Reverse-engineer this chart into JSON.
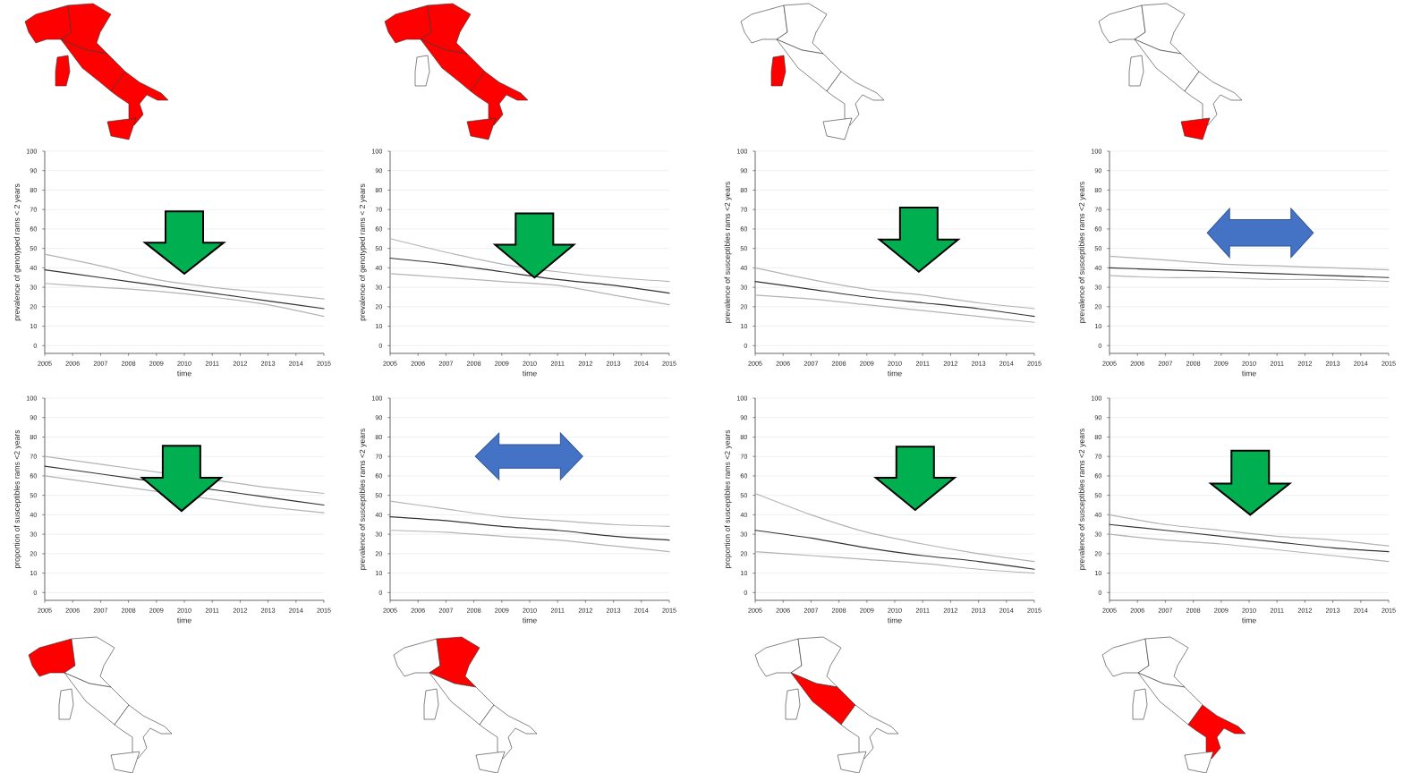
{
  "chart_data": [
    {
      "type": "line",
      "xlabel": "time",
      "ylabel": "prevalence of genotyped rams < 2 years",
      "x": [
        2005,
        2007,
        2009,
        2011,
        2013,
        2015
      ],
      "xlim": [
        2005,
        2015
      ],
      "xticks": [
        2005,
        2006,
        2007,
        2008,
        2009,
        2010,
        2011,
        2012,
        2013,
        2014,
        2015
      ],
      "ylim": [
        -4,
        100
      ],
      "yticks": [
        0,
        10,
        20,
        30,
        40,
        50,
        60,
        70,
        80,
        90,
        100
      ],
      "grid": "y",
      "series": [
        {
          "color": "#b3b3b3",
          "values": [
            47,
            41,
            34,
            30,
            27,
            24
          ]
        },
        {
          "color": "#333333",
          "values": [
            39,
            35,
            31,
            27,
            23,
            19
          ]
        },
        {
          "color": "#b3b3b3",
          "values": [
            32,
            30,
            28,
            25,
            21,
            15
          ]
        }
      ]
    },
    {
      "type": "line",
      "xlabel": "time",
      "ylabel": "prevalence of genotyped rams < 2 years",
      "x": [
        2005,
        2007,
        2009,
        2011,
        2013,
        2015
      ],
      "xlim": [
        2005,
        2015
      ],
      "xticks": [
        2005,
        2006,
        2007,
        2008,
        2009,
        2010,
        2011,
        2012,
        2013,
        2014,
        2015
      ],
      "ylim": [
        -4,
        100
      ],
      "yticks": [
        0,
        10,
        20,
        30,
        40,
        50,
        60,
        70,
        80,
        90,
        100
      ],
      "grid": "y",
      "series": [
        {
          "color": "#b3b3b3",
          "values": [
            55,
            48,
            42,
            38,
            35,
            33
          ]
        },
        {
          "color": "#333333",
          "values": [
            45,
            42,
            38,
            34,
            31,
            27
          ]
        },
        {
          "color": "#b3b3b3",
          "values": [
            37,
            35,
            33,
            31,
            26,
            21
          ]
        }
      ]
    },
    {
      "type": "line",
      "xlabel": "time",
      "ylabel": "prevalence of susceptibles rams <2 years",
      "x": [
        2005,
        2007,
        2009,
        2011,
        2013,
        2015
      ],
      "xlim": [
        2005,
        2015
      ],
      "xticks": [
        2005,
        2006,
        2007,
        2008,
        2009,
        2010,
        2011,
        2012,
        2013,
        2014,
        2015
      ],
      "ylim": [
        -4,
        100
      ],
      "yticks": [
        0,
        10,
        20,
        30,
        40,
        50,
        60,
        70,
        80,
        90,
        100
      ],
      "grid": "y",
      "series": [
        {
          "color": "#b3b3b3",
          "values": [
            40,
            34,
            29,
            26,
            22,
            19
          ]
        },
        {
          "color": "#333333",
          "values": [
            33,
            29,
            25,
            22,
            19,
            15
          ]
        },
        {
          "color": "#b3b3b3",
          "values": [
            26,
            24,
            21,
            18,
            15,
            12
          ]
        }
      ]
    },
    {
      "type": "line",
      "xlabel": "time",
      "ylabel": "prevalence of susceptibles rams <2 years",
      "x": [
        2005,
        2007,
        2009,
        2011,
        2013,
        2015
      ],
      "xlim": [
        2005,
        2015
      ],
      "xticks": [
        2005,
        2006,
        2007,
        2008,
        2009,
        2010,
        2011,
        2012,
        2013,
        2014,
        2015
      ],
      "ylim": [
        -4,
        100
      ],
      "yticks": [
        0,
        10,
        20,
        30,
        40,
        50,
        60,
        70,
        80,
        90,
        100
      ],
      "grid": "y",
      "series": [
        {
          "color": "#b3b3b3",
          "values": [
            46,
            44,
            42,
            41,
            40,
            39
          ]
        },
        {
          "color": "#333333",
          "values": [
            40,
            39,
            38,
            37,
            36,
            35
          ]
        },
        {
          "color": "#b3b3b3",
          "values": [
            36,
            35,
            35,
            34,
            34,
            33
          ]
        }
      ]
    },
    {
      "type": "line",
      "xlabel": "time",
      "ylabel": "proportion of susceptibles rams <2 years",
      "x": [
        2005,
        2007,
        2008,
        2012,
        2013,
        2015
      ],
      "xlim": [
        2005,
        2015
      ],
      "xticks": [
        2005,
        2006,
        2007,
        2008,
        2009,
        2010,
        2011,
        2012,
        2013,
        2014,
        2015
      ],
      "ylim": [
        -4,
        100
      ],
      "yticks": [
        0,
        10,
        20,
        30,
        40,
        50,
        60,
        70,
        80,
        90,
        100
      ],
      "grid": "y",
      "series": [
        {
          "color": "#b3b3b3",
          "values": [
            70,
            66,
            64,
            56,
            54,
            51
          ]
        },
        {
          "color": "#333333",
          "values": [
            65,
            61,
            59,
            51,
            49,
            45
          ]
        },
        {
          "color": "#b3b3b3",
          "values": [
            60,
            56,
            54,
            46,
            44,
            41
          ]
        }
      ]
    },
    {
      "type": "line",
      "xlabel": "time",
      "ylabel": "prevalence of susceptibles rams <2 years",
      "x": [
        2005,
        2007,
        2009,
        2011,
        2013,
        2015
      ],
      "xlim": [
        2005,
        2015
      ],
      "xticks": [
        2005,
        2006,
        2007,
        2008,
        2009,
        2010,
        2011,
        2012,
        2013,
        2014,
        2015
      ],
      "ylim": [
        -4,
        100
      ],
      "yticks": [
        0,
        10,
        20,
        30,
        40,
        50,
        60,
        70,
        80,
        90,
        100
      ],
      "grid": "y",
      "series": [
        {
          "color": "#b3b3b3",
          "values": [
            47,
            43,
            39,
            37,
            35,
            34
          ]
        },
        {
          "color": "#333333",
          "values": [
            39,
            37,
            34,
            32,
            29,
            27
          ]
        },
        {
          "color": "#b3b3b3",
          "values": [
            32,
            31,
            29,
            27,
            24,
            21
          ]
        }
      ]
    },
    {
      "type": "line",
      "xlabel": "time",
      "ylabel": "proportion of susceptibles rams <2 years",
      "x": [
        2005,
        2007,
        2009,
        2011,
        2013,
        2015
      ],
      "xlim": [
        2005,
        2015
      ],
      "xticks": [
        2005,
        2006,
        2007,
        2008,
        2009,
        2010,
        2011,
        2012,
        2013,
        2014,
        2015
      ],
      "ylim": [
        -4,
        100
      ],
      "yticks": [
        0,
        10,
        20,
        30,
        40,
        50,
        60,
        70,
        80,
        90,
        100
      ],
      "grid": "y",
      "series": [
        {
          "color": "#b3b3b3",
          "values": [
            51,
            40,
            31,
            25,
            20,
            16
          ]
        },
        {
          "color": "#333333",
          "values": [
            32,
            28,
            23,
            19,
            16,
            12
          ]
        },
        {
          "color": "#b3b3b3",
          "values": [
            21,
            19,
            17,
            15,
            12,
            10
          ]
        }
      ]
    },
    {
      "type": "line",
      "xlabel": "time",
      "ylabel": "prevalence of susceptibles rams <2 years",
      "x": [
        2005,
        2007,
        2009,
        2011,
        2013,
        2015
      ],
      "xlim": [
        2005,
        2015
      ],
      "xticks": [
        2005,
        2006,
        2007,
        2008,
        2009,
        2010,
        2011,
        2012,
        2013,
        2014,
        2015
      ],
      "ylim": [
        -4,
        100
      ],
      "yticks": [
        0,
        10,
        20,
        30,
        40,
        50,
        60,
        70,
        80,
        90,
        100
      ],
      "grid": "y",
      "series": [
        {
          "color": "#b3b3b3",
          "values": [
            40,
            35,
            32,
            29,
            27,
            24
          ]
        },
        {
          "color": "#333333",
          "values": [
            35,
            32,
            29,
            26,
            23,
            21
          ]
        },
        {
          "color": "#b3b3b3",
          "values": [
            30,
            27,
            25,
            22,
            19,
            16
          ]
        }
      ]
    }
  ]
}
